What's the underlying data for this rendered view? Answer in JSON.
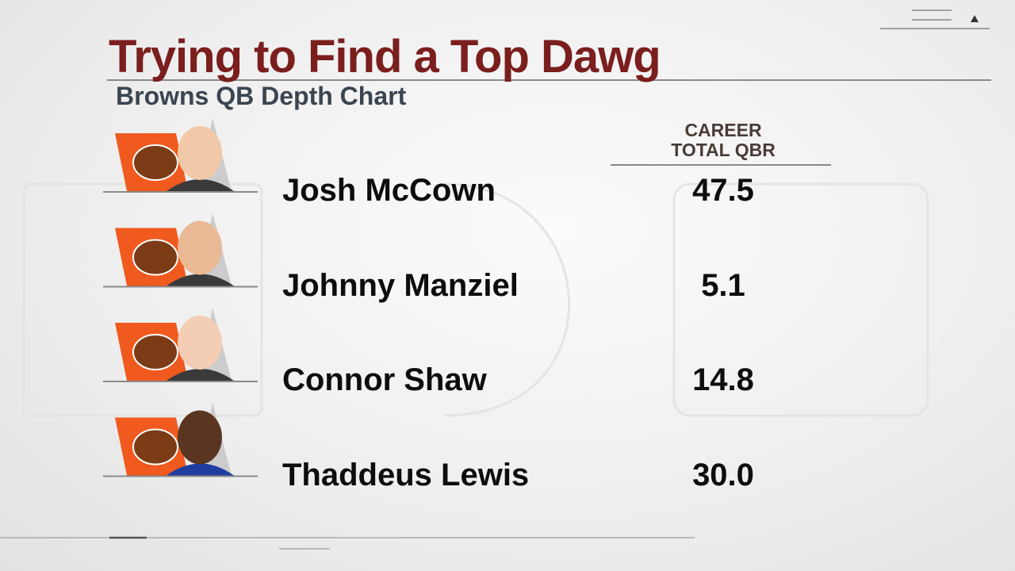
{
  "header": {
    "title": "Trying to Find a Top Dawg",
    "subtitle": "Browns QB Depth Chart"
  },
  "table": {
    "column_header": "CAREER\nTOTAL QBR",
    "rows": [
      {
        "name": "Josh McCown",
        "qbr": "47.5"
      },
      {
        "name": "Johnny Manziel",
        "qbr": "5.1"
      },
      {
        "name": "Connor Shaw",
        "qbr": "14.8"
      },
      {
        "name": "Thaddeus Lewis",
        "qbr": "30.0"
      }
    ]
  }
}
